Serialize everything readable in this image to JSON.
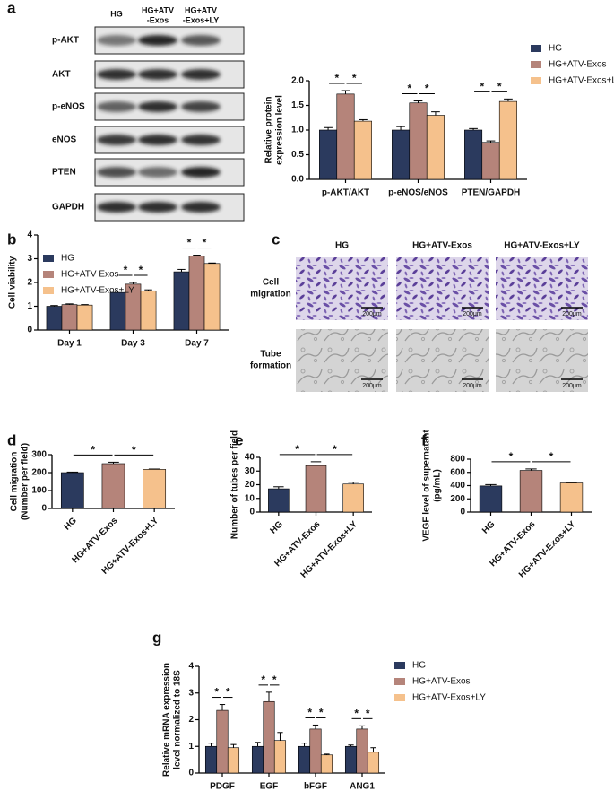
{
  "panel_labels": [
    "a",
    "b",
    "c",
    "d",
    "e",
    "f",
    "g"
  ],
  "blot": {
    "columns": [
      [
        "HG"
      ],
      [
        "HG+ATV",
        "-Exos"
      ],
      [
        "HG+ATV",
        "-Exos+LY"
      ]
    ],
    "rows": [
      "p-AKT",
      "AKT",
      "p-eNOS",
      "eNOS",
      "PTEN",
      "GAPDH"
    ]
  },
  "micrographs": {
    "columns": [
      "HG",
      "HG+ATV-Exos",
      "HG+ATV-Exos+LY"
    ],
    "rows": [
      [
        "Cell",
        "migration"
      ],
      [
        "Tube",
        "formation"
      ]
    ],
    "scale_bars": [
      "200μm",
      "200μm",
      "200μm",
      "200μm",
      "200μm",
      "200μm"
    ]
  },
  "chart_data": [
    {
      "type": "bar",
      "categories": [
        "p-AKT/AKT",
        "p-eNOS/eNOS",
        "PTEN/GAPDH"
      ],
      "series": [
        {
          "name": "HG",
          "color": "#2b3a5e",
          "values": [
            1.0,
            1.0,
            1.0
          ],
          "errors": [
            0.05,
            0.07,
            0.03
          ]
        },
        {
          "name": "HG+ATV-Exos",
          "color": "#b5847a",
          "values": [
            1.73,
            1.55,
            0.75
          ],
          "errors": [
            0.07,
            0.04,
            0.03
          ]
        },
        {
          "name": "HG+ATV-Exos+LY",
          "color": "#f5c18c",
          "values": [
            1.18,
            1.3,
            1.58
          ],
          "errors": [
            0.03,
            0.07,
            0.05
          ]
        }
      ],
      "y_label": [
        "Relative protein",
        "expression level"
      ],
      "ylim": [
        0,
        2
      ],
      "yticks": [
        {
          "value": 0,
          "label": "0.0"
        },
        0.5,
        {
          "value": 1,
          "label": "1.0"
        },
        1.5,
        {
          "value": 2,
          "label": "2.0"
        }
      ],
      "legend": "right",
      "significance": [
        {
          "group": 0,
          "bars": [
            0,
            1
          ],
          "label": "*"
        },
        {
          "group": 0,
          "bars": [
            1,
            2
          ],
          "label": "*"
        },
        {
          "group": 1,
          "bars": [
            0,
            1
          ],
          "label": "*"
        },
        {
          "group": 1,
          "bars": [
            1,
            2
          ],
          "label": "*"
        },
        {
          "group": 2,
          "bars": [
            0,
            1
          ],
          "label": "*"
        },
        {
          "group": 2,
          "bars": [
            1,
            2
          ],
          "label": "*"
        }
      ]
    },
    {
      "type": "bar",
      "categories": [
        "Day 1",
        "Day 3",
        "Day 7"
      ],
      "series": [
        {
          "name": "HG",
          "color": "#2b3a5e",
          "values": [
            1.0,
            1.58,
            2.45
          ],
          "errors": [
            0.03,
            0.06,
            0.1
          ]
        },
        {
          "name": "HG+ATV-Exos",
          "color": "#b5847a",
          "values": [
            1.07,
            1.93,
            3.12
          ],
          "errors": [
            0.03,
            0.07,
            0.03
          ]
        },
        {
          "name": "HG+ATV-Exos+LY",
          "color": "#f5c18c",
          "values": [
            1.05,
            1.65,
            2.8
          ],
          "errors": [
            0.02,
            0.04,
            0.02
          ]
        }
      ],
      "y_label": [
        "Cell viability"
      ],
      "ylim": [
        0,
        4
      ],
      "yticks": [
        0,
        1,
        2,
        3,
        4
      ],
      "legend": "upper left",
      "significance": [
        {
          "group": 1,
          "bars": [
            0,
            1
          ],
          "label": "*"
        },
        {
          "group": 1,
          "bars": [
            1,
            2
          ],
          "label": "*"
        },
        {
          "group": 2,
          "bars": [
            0,
            1
          ],
          "label": "*"
        },
        {
          "group": 2,
          "bars": [
            1,
            2
          ],
          "label": "*"
        }
      ]
    },
    {
      "type": "bar",
      "categories": [
        "HG",
        "HG+ATV-Exos",
        "HG+ATV-Exos+LY"
      ],
      "values": [
        200,
        250,
        218
      ],
      "errors": [
        3,
        8,
        2
      ],
      "colors": [
        "#2b3a5e",
        "#b5847a",
        "#f5c18c"
      ],
      "y_label": [
        "Cell migration",
        "(Number per field)"
      ],
      "ylim": [
        0,
        300
      ],
      "yticks": [
        0,
        100,
        200,
        300
      ],
      "xtick_rotation": -45,
      "significance": [
        {
          "bars": [
            0,
            1
          ],
          "label": "*"
        },
        {
          "bars": [
            1,
            2
          ],
          "label": "*"
        }
      ]
    },
    {
      "type": "bar",
      "categories": [
        "HG",
        "HG+ATV-Exos",
        "HG+ATV-Exos+LY"
      ],
      "values": [
        17,
        34,
        20.5
      ],
      "errors": [
        1.5,
        2.8,
        1.3
      ],
      "colors": [
        "#2b3a5e",
        "#b5847a",
        "#f5c18c"
      ],
      "y_label": [
        "Number of tubes per field"
      ],
      "ylim": [
        0,
        40
      ],
      "yticks": [
        0,
        10,
        20,
        30,
        40
      ],
      "xtick_rotation": -45,
      "significance": [
        {
          "bars": [
            0,
            1
          ],
          "label": "*"
        },
        {
          "bars": [
            1,
            2
          ],
          "label": "*"
        }
      ]
    },
    {
      "type": "bar",
      "categories": [
        "HG",
        "HG+ATV-Exos",
        "HG+ATV-Exos+LY"
      ],
      "values": [
        395,
        630,
        440
      ],
      "errors": [
        20,
        22,
        5
      ],
      "colors": [
        "#2b3a5e",
        "#b5847a",
        "#f5c18c"
      ],
      "y_label": [
        "VEGF level of supernatant",
        "(pg/mL)"
      ],
      "ylim": [
        0,
        800
      ],
      "yticks": [
        0,
        200,
        400,
        600,
        800
      ],
      "xtick_rotation": -45,
      "significance": [
        {
          "bars": [
            0,
            1
          ],
          "label": "*"
        },
        {
          "bars": [
            1,
            2
          ],
          "label": "*"
        }
      ]
    },
    {
      "type": "bar",
      "categories": [
        "PDGF",
        "EGF",
        "bFGF",
        "ANG1"
      ],
      "series": [
        {
          "name": "HG",
          "color": "#2b3a5e",
          "values": [
            1.0,
            1.0,
            1.0,
            1.0
          ],
          "errors": [
            0.12,
            0.15,
            0.12,
            0.05
          ]
        },
        {
          "name": "HG+ATV-Exos",
          "color": "#b5847a",
          "values": [
            2.35,
            2.68,
            1.65,
            1.65
          ],
          "errors": [
            0.22,
            0.35,
            0.15,
            0.12
          ]
        },
        {
          "name": "HG+ATV-Exos+LY",
          "color": "#f5c18c",
          "values": [
            0.95,
            1.22,
            0.68,
            0.78
          ],
          "errors": [
            0.12,
            0.3,
            0.03,
            0.17
          ]
        }
      ],
      "y_label": [
        "Relative mRNA expression",
        "level normalized to 18S"
      ],
      "ylim": [
        0,
        4
      ],
      "yticks": [
        0,
        1,
        2,
        3,
        4
      ],
      "legend": "right",
      "significance": [
        {
          "group": 0,
          "bars": [
            0,
            1
          ],
          "label": "*"
        },
        {
          "group": 0,
          "bars": [
            1,
            2
          ],
          "label": "*"
        },
        {
          "group": 1,
          "bars": [
            0,
            1
          ],
          "label": "*"
        },
        {
          "group": 1,
          "bars": [
            1,
            2
          ],
          "label": "*"
        },
        {
          "group": 2,
          "bars": [
            0,
            1
          ],
          "label": "*"
        },
        {
          "group": 2,
          "bars": [
            1,
            2
          ],
          "label": "*"
        },
        {
          "group": 3,
          "bars": [
            0,
            1
          ],
          "label": "*"
        },
        {
          "group": 3,
          "bars": [
            1,
            2
          ],
          "label": "*"
        }
      ]
    }
  ]
}
